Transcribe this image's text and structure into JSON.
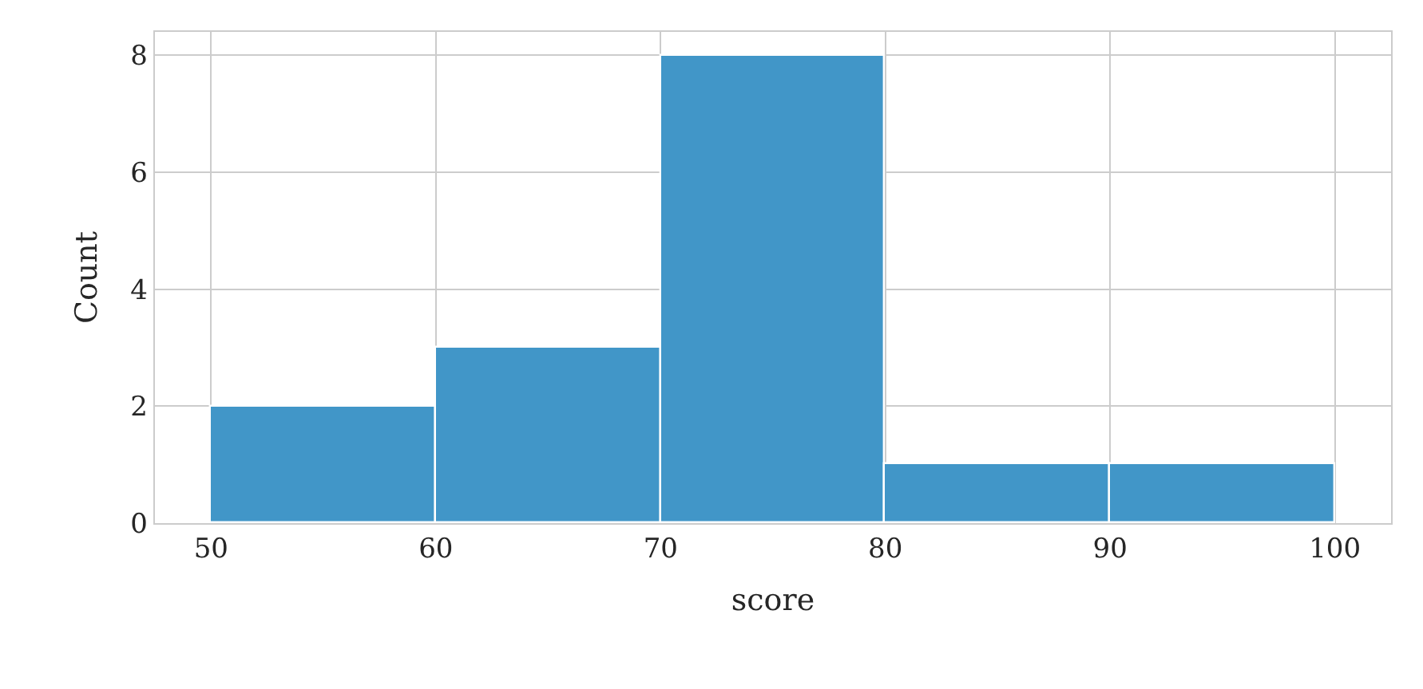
{
  "chart_data": {
    "type": "histogram",
    "xlabel": "score",
    "ylabel": "Count",
    "bins": [
      50,
      60,
      70,
      80,
      90,
      100
    ],
    "values": [
      2,
      3,
      8,
      1,
      1
    ],
    "color": "#4196c8",
    "xlim": [
      47.5,
      102.5
    ],
    "xticks": [
      50,
      60,
      70,
      80,
      90,
      100
    ],
    "ylim": [
      0,
      8.4
    ],
    "yticks": [
      0,
      2,
      4,
      6,
      8
    ],
    "grid": true
  }
}
